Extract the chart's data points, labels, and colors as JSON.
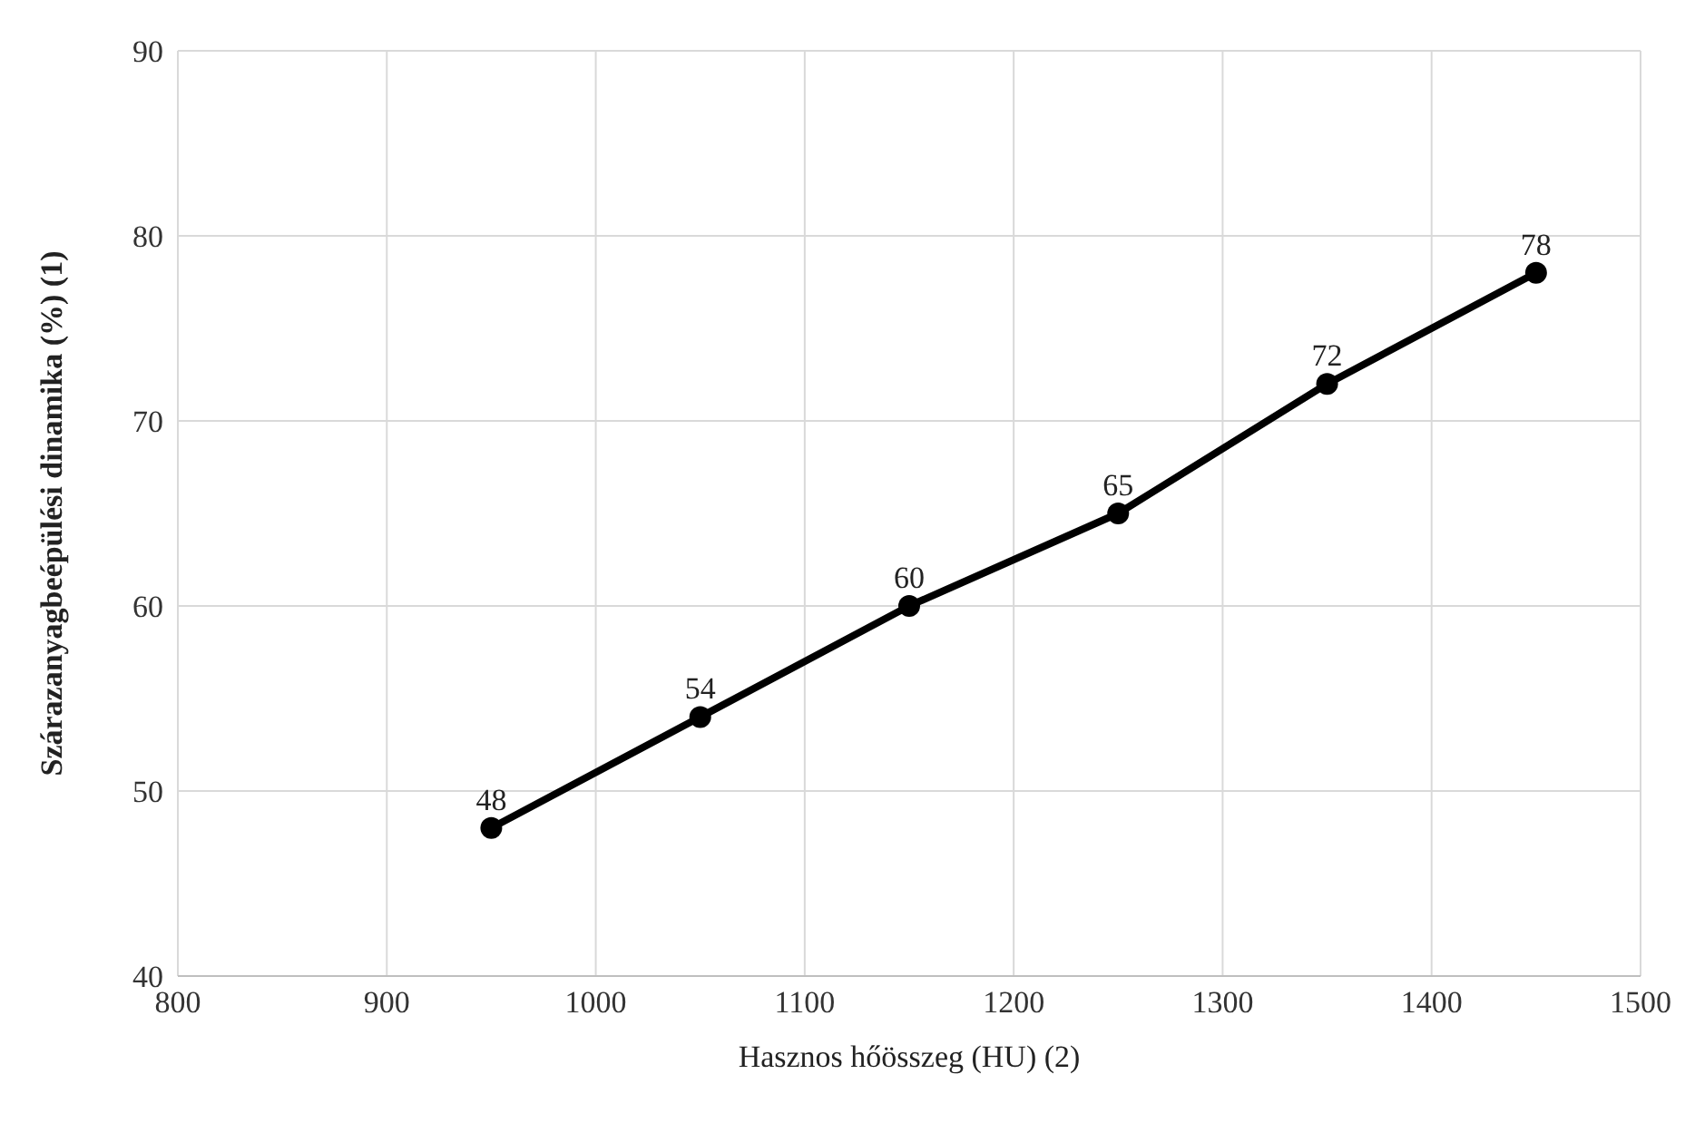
{
  "chart_data": {
    "type": "line",
    "xlabel": "Hasznos hőösszeg (HU) (2)",
    "ylabel": "Szárazanyagbeépülési dinamika (%)  (1)",
    "x": [
      950,
      1050,
      1150,
      1250,
      1350,
      1450
    ],
    "series": [
      {
        "color": "#000000",
        "values": [
          48,
          54,
          60,
          65,
          72,
          78
        ]
      }
    ],
    "xlim": [
      800,
      1500
    ],
    "xticks": [
      800,
      900,
      1000,
      1100,
      1200,
      1300,
      1400,
      1500
    ],
    "ylim": [
      40,
      90
    ],
    "yticks": [
      40,
      50,
      60,
      70,
      80,
      90
    ],
    "grid": true,
    "marker": "circle",
    "line_style": "solid",
    "data_labels": true,
    "legend": false
  }
}
